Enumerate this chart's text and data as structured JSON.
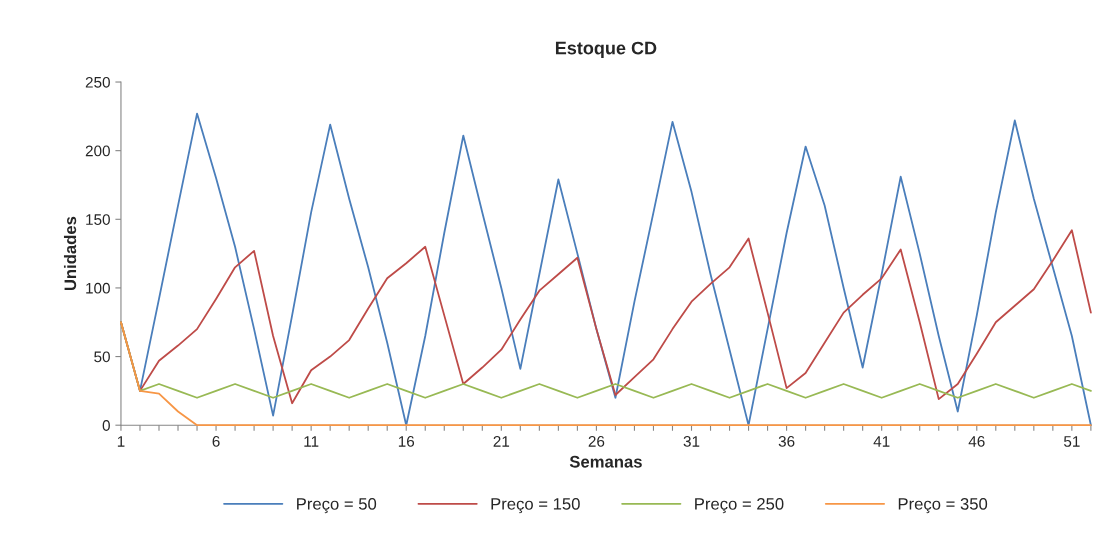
{
  "chart_data": {
    "type": "line",
    "title": "Estoque CD",
    "xlabel": "Semanas",
    "ylabel": "Unidades",
    "categories": [
      "1",
      null,
      null,
      null,
      null,
      "6",
      null,
      null,
      null,
      null,
      "11",
      null,
      null,
      null,
      null,
      "16",
      null,
      null,
      null,
      null,
      "21",
      null,
      null,
      null,
      null,
      "26",
      null,
      null,
      null,
      null,
      "31",
      null,
      null,
      null,
      null,
      "36",
      null,
      null,
      null,
      null,
      "41",
      null,
      null,
      null,
      null,
      "46",
      null,
      null,
      null,
      null,
      "51",
      null
    ],
    "series": [
      {
        "name": "Preço = 50",
        "color": "#4a7ebb",
        "values": [
          75,
          25,
          92,
          160,
          227,
          180,
          130,
          70,
          7,
          80,
          155,
          219,
          165,
          115,
          60,
          0,
          65,
          140,
          211,
          155,
          100,
          41,
          110,
          179,
          125,
          70,
          20,
          90,
          155,
          221,
          170,
          110,
          55,
          0,
          70,
          140,
          203,
          160,
          100,
          42,
          110,
          181,
          125,
          65,
          10,
          80,
          155,
          222,
          165,
          115,
          65,
          0
        ]
      },
      {
        "name": "Preço = 150",
        "color": "#be4b48",
        "values": [
          75,
          25,
          47,
          58,
          70,
          92,
          115,
          127,
          65,
          16,
          40,
          50,
          62,
          85,
          107,
          118,
          130,
          80,
          30,
          42,
          55,
          77,
          98,
          110,
          122,
          70,
          22,
          35,
          48,
          70,
          90,
          103,
          115,
          136,
          82,
          27,
          38,
          60,
          82,
          95,
          107,
          128,
          75,
          19,
          30,
          52,
          75,
          87,
          99,
          120,
          142,
          82
        ]
      },
      {
        "name": "Preço = 250",
        "color": "#98b954",
        "values": [
          75,
          25,
          30,
          25,
          20,
          25,
          30,
          25,
          20,
          25,
          30,
          25,
          20,
          25,
          30,
          25,
          20,
          25,
          30,
          25,
          20,
          25,
          30,
          25,
          20,
          25,
          30,
          25,
          20,
          25,
          30,
          25,
          20,
          25,
          30,
          25,
          20,
          25,
          30,
          25,
          20,
          25,
          30,
          25,
          20,
          25,
          30,
          25,
          20,
          25,
          30,
          25
        ]
      },
      {
        "name": "Preço = 350",
        "color": "#f79646",
        "values": [
          75,
          25,
          23,
          10,
          0,
          0,
          0,
          0,
          0,
          0,
          0,
          0,
          0,
          0,
          0,
          0,
          0,
          0,
          0,
          0,
          0,
          0,
          0,
          0,
          0,
          0,
          0,
          0,
          0,
          0,
          0,
          0,
          0,
          0,
          0,
          0,
          0,
          0,
          0,
          0,
          0,
          0,
          0,
          0,
          0,
          0,
          0,
          0,
          0,
          0,
          0,
          0
        ]
      }
    ],
    "ylim": [
      0,
      250
    ],
    "yticks": [
      0,
      50,
      100,
      150,
      200,
      250
    ],
    "grid": false,
    "legend": "bottom",
    "marker": "none",
    "line_style": "solid"
  }
}
